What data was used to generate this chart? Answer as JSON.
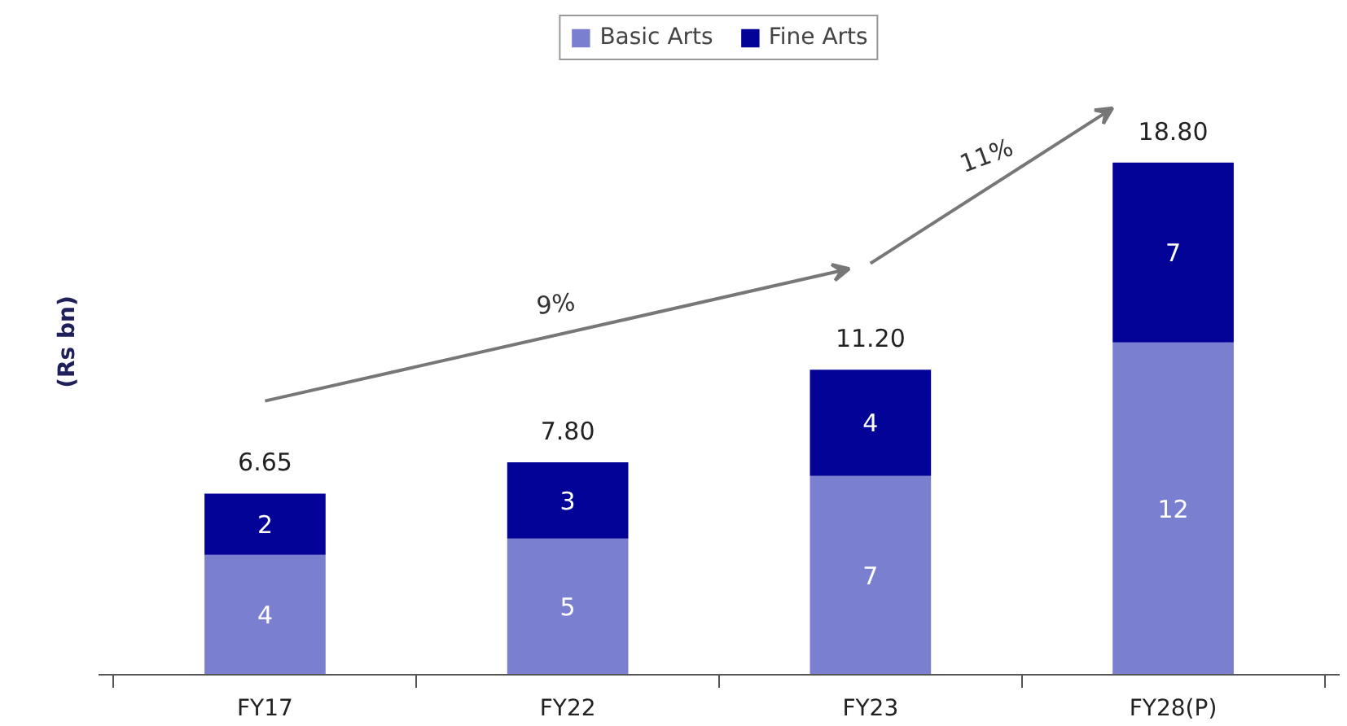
{
  "chart_data": {
    "type": "bar",
    "stacked": true,
    "ylabel": "(Rs bn)",
    "categories": [
      "FY17",
      "FY22",
      "FY23",
      "FY28(P)"
    ],
    "series": [
      {
        "name": "Basic Arts",
        "color": "#7b7fcf",
        "values": [
          4.4,
          5.0,
          7.3,
          12.2
        ],
        "value_labels": [
          "4",
          "5",
          "7",
          "12"
        ]
      },
      {
        "name": "Fine Arts",
        "color": "#030397",
        "values": [
          2.25,
          2.8,
          3.9,
          6.6
        ],
        "value_labels": [
          "2",
          "3",
          "4",
          "7"
        ]
      }
    ],
    "totals": [
      "6.65",
      "7.80",
      "11.20",
      "18.80"
    ],
    "annotations": [
      "9%",
      "11%"
    ],
    "legend": "top"
  }
}
